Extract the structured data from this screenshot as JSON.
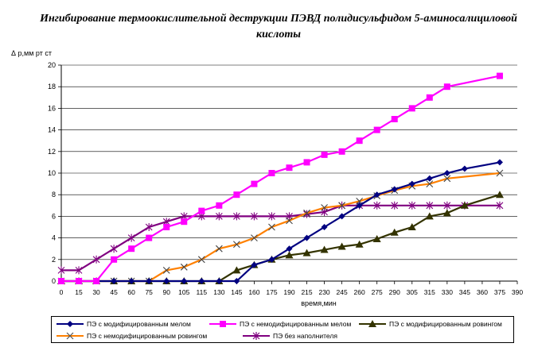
{
  "chart_data": {
    "type": "line",
    "title": "Ингибирование термоокислительной деструкции ПЭВД полидисульфидом 5-аминосалициловой кислоты",
    "ylabel_symbol": "Δ",
    "ylabel": "р,мм рт ст",
    "xlabel": "время,мин",
    "ylim": [
      0,
      20
    ],
    "yticks": [
      0,
      2,
      4,
      6,
      8,
      10,
      12,
      14,
      16,
      18,
      20
    ],
    "xlim": [
      0,
      390
    ],
    "xticks": [
      0,
      15,
      30,
      45,
      60,
      75,
      90,
      105,
      115,
      130,
      145,
      160,
      175,
      190,
      215,
      230,
      245,
      260,
      275,
      290,
      305,
      315,
      330,
      345,
      360,
      375,
      390
    ],
    "grid": "horizontal",
    "legend_position": "bottom",
    "series": [
      {
        "name": "ПЭ с модифицированным мелом",
        "color": "#000080",
        "marker": "diamond",
        "points": [
          [
            0,
            0
          ],
          [
            15,
            0
          ],
          [
            30,
            0
          ],
          [
            45,
            0
          ],
          [
            60,
            0
          ],
          [
            75,
            0
          ],
          [
            90,
            0
          ],
          [
            105,
            0
          ],
          [
            115,
            0
          ],
          [
            130,
            0
          ],
          [
            145,
            0
          ],
          [
            160,
            1.5
          ],
          [
            175,
            2
          ],
          [
            190,
            3
          ],
          [
            215,
            4
          ],
          [
            230,
            5
          ],
          [
            245,
            6
          ],
          [
            260,
            7
          ],
          [
            275,
            8
          ],
          [
            290,
            8.5
          ],
          [
            305,
            9
          ],
          [
            315,
            9.5
          ],
          [
            330,
            10
          ],
          [
            345,
            10.4
          ],
          [
            375,
            11
          ]
        ]
      },
      {
        "name": "ПЭ с немодифицированным мелом",
        "color": "#FF00FF",
        "marker": "square",
        "points": [
          [
            0,
            0
          ],
          [
            15,
            0
          ],
          [
            30,
            0
          ],
          [
            45,
            2
          ],
          [
            60,
            3
          ],
          [
            75,
            4
          ],
          [
            90,
            5
          ],
          [
            105,
            5.5
          ],
          [
            115,
            6.5
          ],
          [
            130,
            7
          ],
          [
            145,
            8
          ],
          [
            160,
            9
          ],
          [
            175,
            10
          ],
          [
            190,
            10.5
          ],
          [
            215,
            11
          ],
          [
            230,
            11.7
          ],
          [
            245,
            12
          ],
          [
            260,
            13
          ],
          [
            275,
            14
          ],
          [
            290,
            15
          ],
          [
            305,
            16
          ],
          [
            315,
            17
          ],
          [
            330,
            18
          ],
          [
            375,
            19
          ]
        ]
      },
      {
        "name": "ПЭ с модифицированным ровингом",
        "color": "#333300",
        "marker": "triangle",
        "points": [
          [
            0,
            0
          ],
          [
            15,
            0
          ],
          [
            30,
            0
          ],
          [
            45,
            0
          ],
          [
            60,
            0
          ],
          [
            75,
            0
          ],
          [
            90,
            0
          ],
          [
            105,
            0
          ],
          [
            115,
            0
          ],
          [
            130,
            0
          ],
          [
            145,
            1
          ],
          [
            160,
            1.5
          ],
          [
            175,
            2
          ],
          [
            190,
            2.4
          ],
          [
            215,
            2.6
          ],
          [
            230,
            2.9
          ],
          [
            245,
            3.2
          ],
          [
            260,
            3.4
          ],
          [
            275,
            3.9
          ],
          [
            290,
            4.5
          ],
          [
            305,
            5
          ],
          [
            315,
            6
          ],
          [
            330,
            6.3
          ],
          [
            345,
            7
          ],
          [
            375,
            8
          ]
        ]
      },
      {
        "name": "ПЭ с немодифицированным ровингом",
        "color": "#FF8000",
        "marker": "x",
        "points": [
          [
            0,
            0
          ],
          [
            15,
            0
          ],
          [
            30,
            0
          ],
          [
            45,
            0
          ],
          [
            60,
            0
          ],
          [
            75,
            0
          ],
          [
            90,
            1
          ],
          [
            105,
            1.3
          ],
          [
            115,
            2
          ],
          [
            130,
            3
          ],
          [
            145,
            3.4
          ],
          [
            160,
            4
          ],
          [
            175,
            5
          ],
          [
            190,
            5.6
          ],
          [
            215,
            6.3
          ],
          [
            230,
            6.8
          ],
          [
            245,
            7
          ],
          [
            260,
            7.4
          ],
          [
            275,
            7.9
          ],
          [
            290,
            8.4
          ],
          [
            305,
            8.8
          ],
          [
            315,
            9
          ],
          [
            330,
            9.5
          ],
          [
            375,
            10
          ]
        ]
      },
      {
        "name": "ПЭ без наполнителя",
        "color": "#800080",
        "marker": "star",
        "points": [
          [
            0,
            1
          ],
          [
            15,
            1
          ],
          [
            30,
            2
          ],
          [
            45,
            3
          ],
          [
            60,
            4
          ],
          [
            75,
            5
          ],
          [
            90,
            5.5
          ],
          [
            105,
            6
          ],
          [
            115,
            6
          ],
          [
            130,
            6
          ],
          [
            145,
            6
          ],
          [
            160,
            6
          ],
          [
            175,
            6
          ],
          [
            190,
            6
          ],
          [
            215,
            6.2
          ],
          [
            230,
            6.4
          ],
          [
            245,
            7
          ],
          [
            260,
            7
          ],
          [
            275,
            7
          ],
          [
            290,
            7
          ],
          [
            305,
            7
          ],
          [
            315,
            7
          ],
          [
            330,
            7
          ],
          [
            345,
            7
          ],
          [
            375,
            7
          ]
        ]
      }
    ]
  }
}
